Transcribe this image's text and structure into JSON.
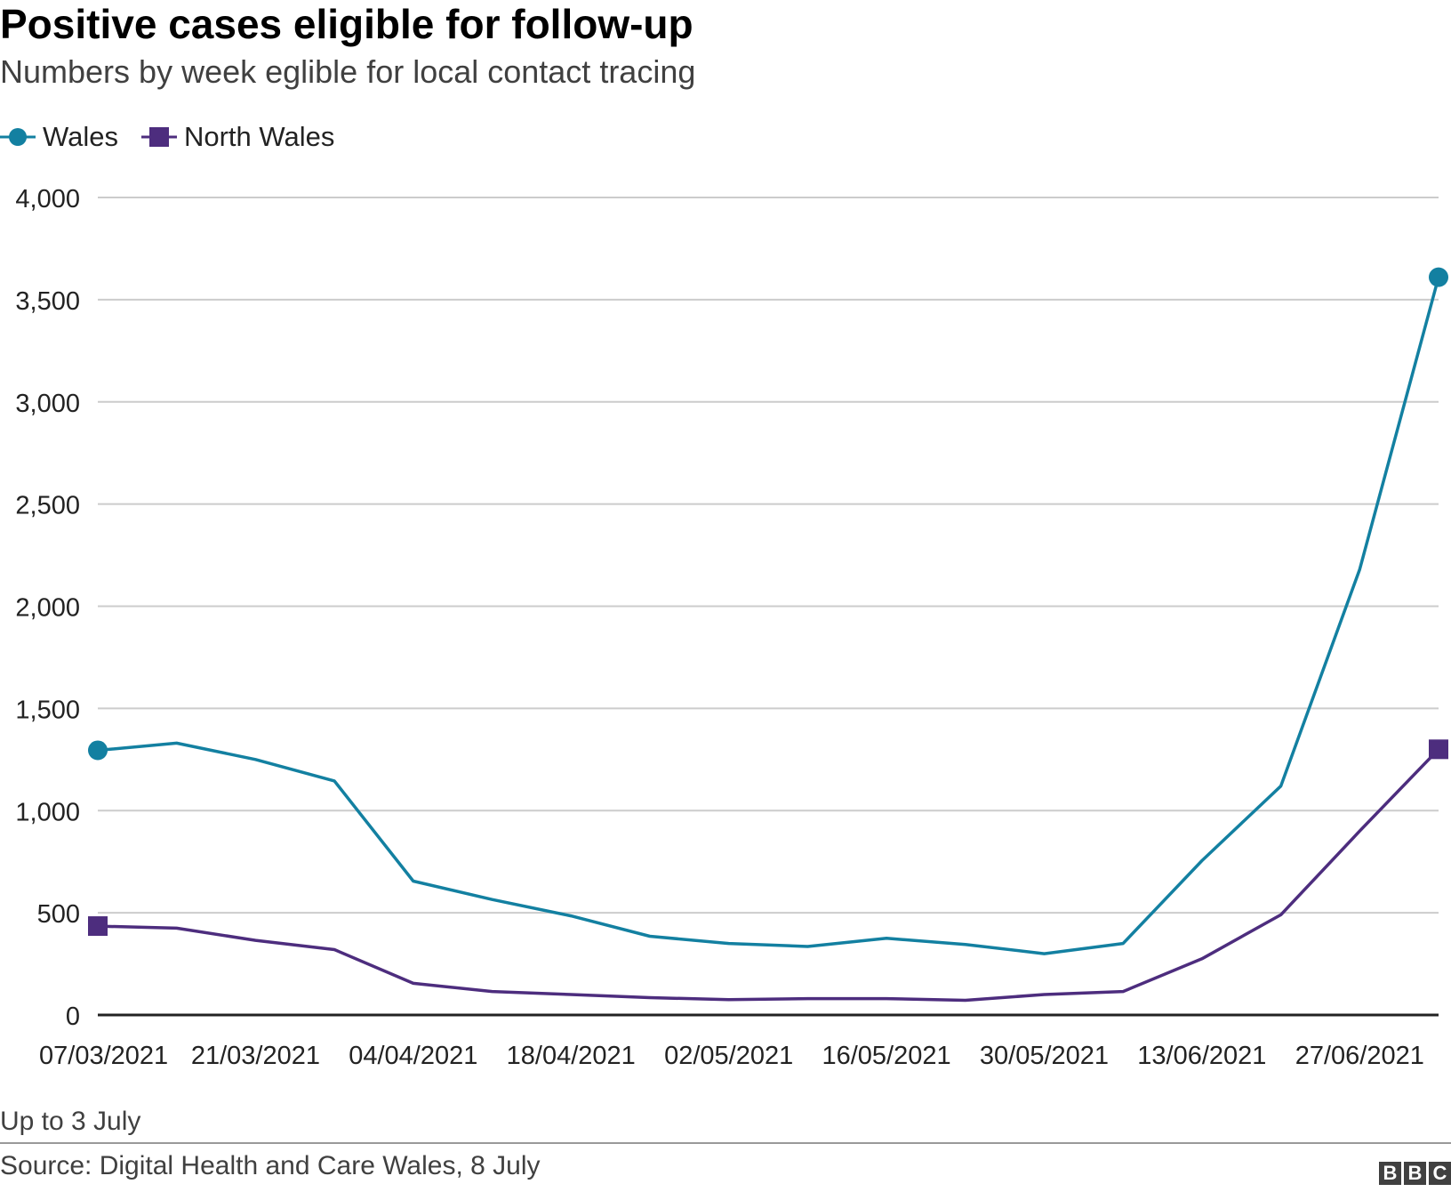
{
  "header": {
    "title": "Positive cases eligible for follow-up",
    "subtitle": "Numbers by week eglible for local contact tracing"
  },
  "legend": {
    "items": [
      {
        "label": "Wales",
        "color": "#1380a1",
        "marker": "circle"
      },
      {
        "label": "North Wales",
        "color": "#4d2d7e",
        "marker": "square"
      }
    ]
  },
  "footer": {
    "note": "Up to 3 July",
    "source": "Source: Digital Health and Care Wales, 8 July",
    "logo_letters": [
      "B",
      "B",
      "C"
    ]
  },
  "chart_data": {
    "type": "line",
    "title": "Positive cases eligible for follow-up",
    "subtitle": "Numbers by week eglible for local contact tracing",
    "xlabel": "",
    "ylabel": "",
    "x": [
      "07/03/2021",
      "14/03/2021",
      "21/03/2021",
      "28/03/2021",
      "04/04/2021",
      "11/04/2021",
      "18/04/2021",
      "25/04/2021",
      "02/05/2021",
      "09/05/2021",
      "16/05/2021",
      "23/05/2021",
      "30/05/2021",
      "06/06/2021",
      "13/06/2021",
      "20/06/2021",
      "27/06/2021",
      "04/07/2021"
    ],
    "x_tick_labels": [
      "07/03/2021",
      "21/03/2021",
      "04/04/2021",
      "18/04/2021",
      "02/05/2021",
      "16/05/2021",
      "30/05/2021",
      "13/06/2021",
      "27/06/2021"
    ],
    "ylim": [
      0,
      4000
    ],
    "y_ticks": [
      0,
      500,
      1000,
      1500,
      2000,
      2500,
      3000,
      3500,
      4000
    ],
    "y_tick_labels": [
      "0",
      "500",
      "1,000",
      "1,500",
      "2,000",
      "2,500",
      "3,000",
      "3,500",
      "4,000"
    ],
    "grid": true,
    "legend_position": "top-left",
    "series": [
      {
        "name": "Wales",
        "color": "#1380a1",
        "values": [
          1295,
          1330,
          1250,
          1145,
          655,
          565,
          485,
          385,
          350,
          335,
          375,
          345,
          300,
          350,
          755,
          1120,
          2180,
          3610
        ]
      },
      {
        "name": "North Wales",
        "color": "#4d2d7e",
        "values": [
          435,
          425,
          365,
          320,
          155,
          115,
          100,
          85,
          75,
          80,
          80,
          72,
          100,
          115,
          275,
          490,
          900,
          1300
        ]
      }
    ]
  }
}
